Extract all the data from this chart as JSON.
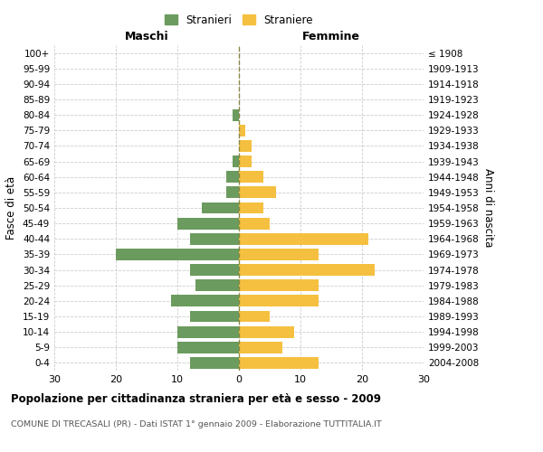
{
  "age_groups": [
    "0-4",
    "5-9",
    "10-14",
    "15-19",
    "20-24",
    "25-29",
    "30-34",
    "35-39",
    "40-44",
    "45-49",
    "50-54",
    "55-59",
    "60-64",
    "65-69",
    "70-74",
    "75-79",
    "80-84",
    "85-89",
    "90-94",
    "95-99",
    "100+"
  ],
  "birth_years": [
    "2004-2008",
    "1999-2003",
    "1994-1998",
    "1989-1993",
    "1984-1988",
    "1979-1983",
    "1974-1978",
    "1969-1973",
    "1964-1968",
    "1959-1963",
    "1954-1958",
    "1949-1953",
    "1944-1948",
    "1939-1943",
    "1934-1938",
    "1929-1933",
    "1924-1928",
    "1919-1923",
    "1914-1918",
    "1909-1913",
    "≤ 1908"
  ],
  "males": [
    8,
    10,
    10,
    8,
    11,
    7,
    8,
    20,
    8,
    10,
    6,
    2,
    2,
    1,
    0,
    0,
    1,
    0,
    0,
    0,
    0
  ],
  "females": [
    13,
    7,
    9,
    5,
    13,
    13,
    22,
    13,
    21,
    5,
    4,
    6,
    4,
    2,
    2,
    1,
    0,
    0,
    0,
    0,
    0
  ],
  "male_color": "#6b9b5e",
  "female_color": "#f5c040",
  "grid_color": "#cccccc",
  "title": "Popolazione per cittadinanza straniera per età e sesso - 2009",
  "subtitle": "COMUNE DI TRECASALI (PR) - Dati ISTAT 1° gennaio 2009 - Elaborazione TUTTITALIA.IT",
  "ylabel_left": "Fasce di età",
  "ylabel_right": "Anni di nascita",
  "xlabel_left": "Maschi",
  "xlabel_right": "Femmine",
  "legend_males": "Stranieri",
  "legend_females": "Straniere",
  "xlim": 30,
  "background_color": "#ffffff"
}
